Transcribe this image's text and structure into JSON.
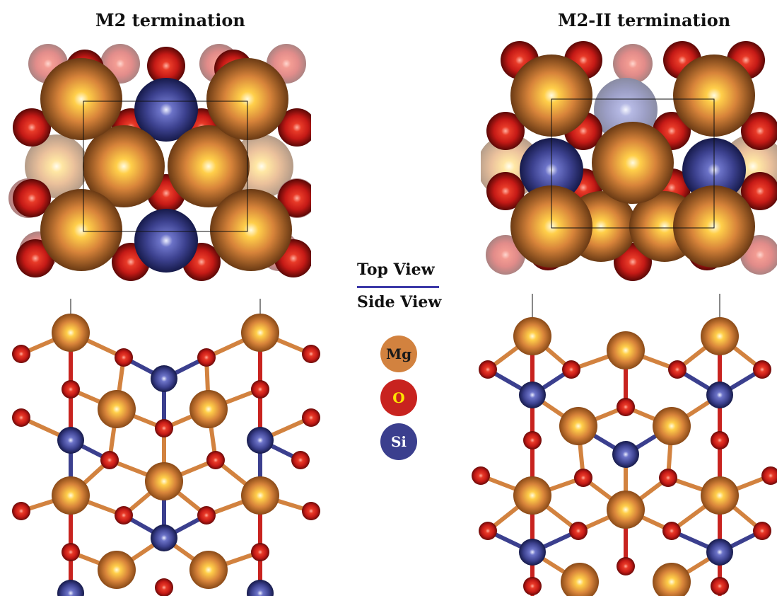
{
  "titles": {
    "left": "M2 termination",
    "right": "M2-II termination"
  },
  "view_labels": {
    "top": "Top View",
    "side": "Side View"
  },
  "legend": [
    {
      "symbol": "Mg",
      "color": "#d2823f",
      "text_color": "#1a1a1a"
    },
    {
      "symbol": "O",
      "color": "#c8231f",
      "text_color": "#ffe400"
    },
    {
      "symbol": "Si",
      "color": "#3b3f8e",
      "text_color": "#ffffff"
    }
  ],
  "colors": {
    "mg": "#d2823f",
    "o": "#c8231f",
    "si": "#3b3f8e",
    "divider": "#3d3aa8"
  }
}
